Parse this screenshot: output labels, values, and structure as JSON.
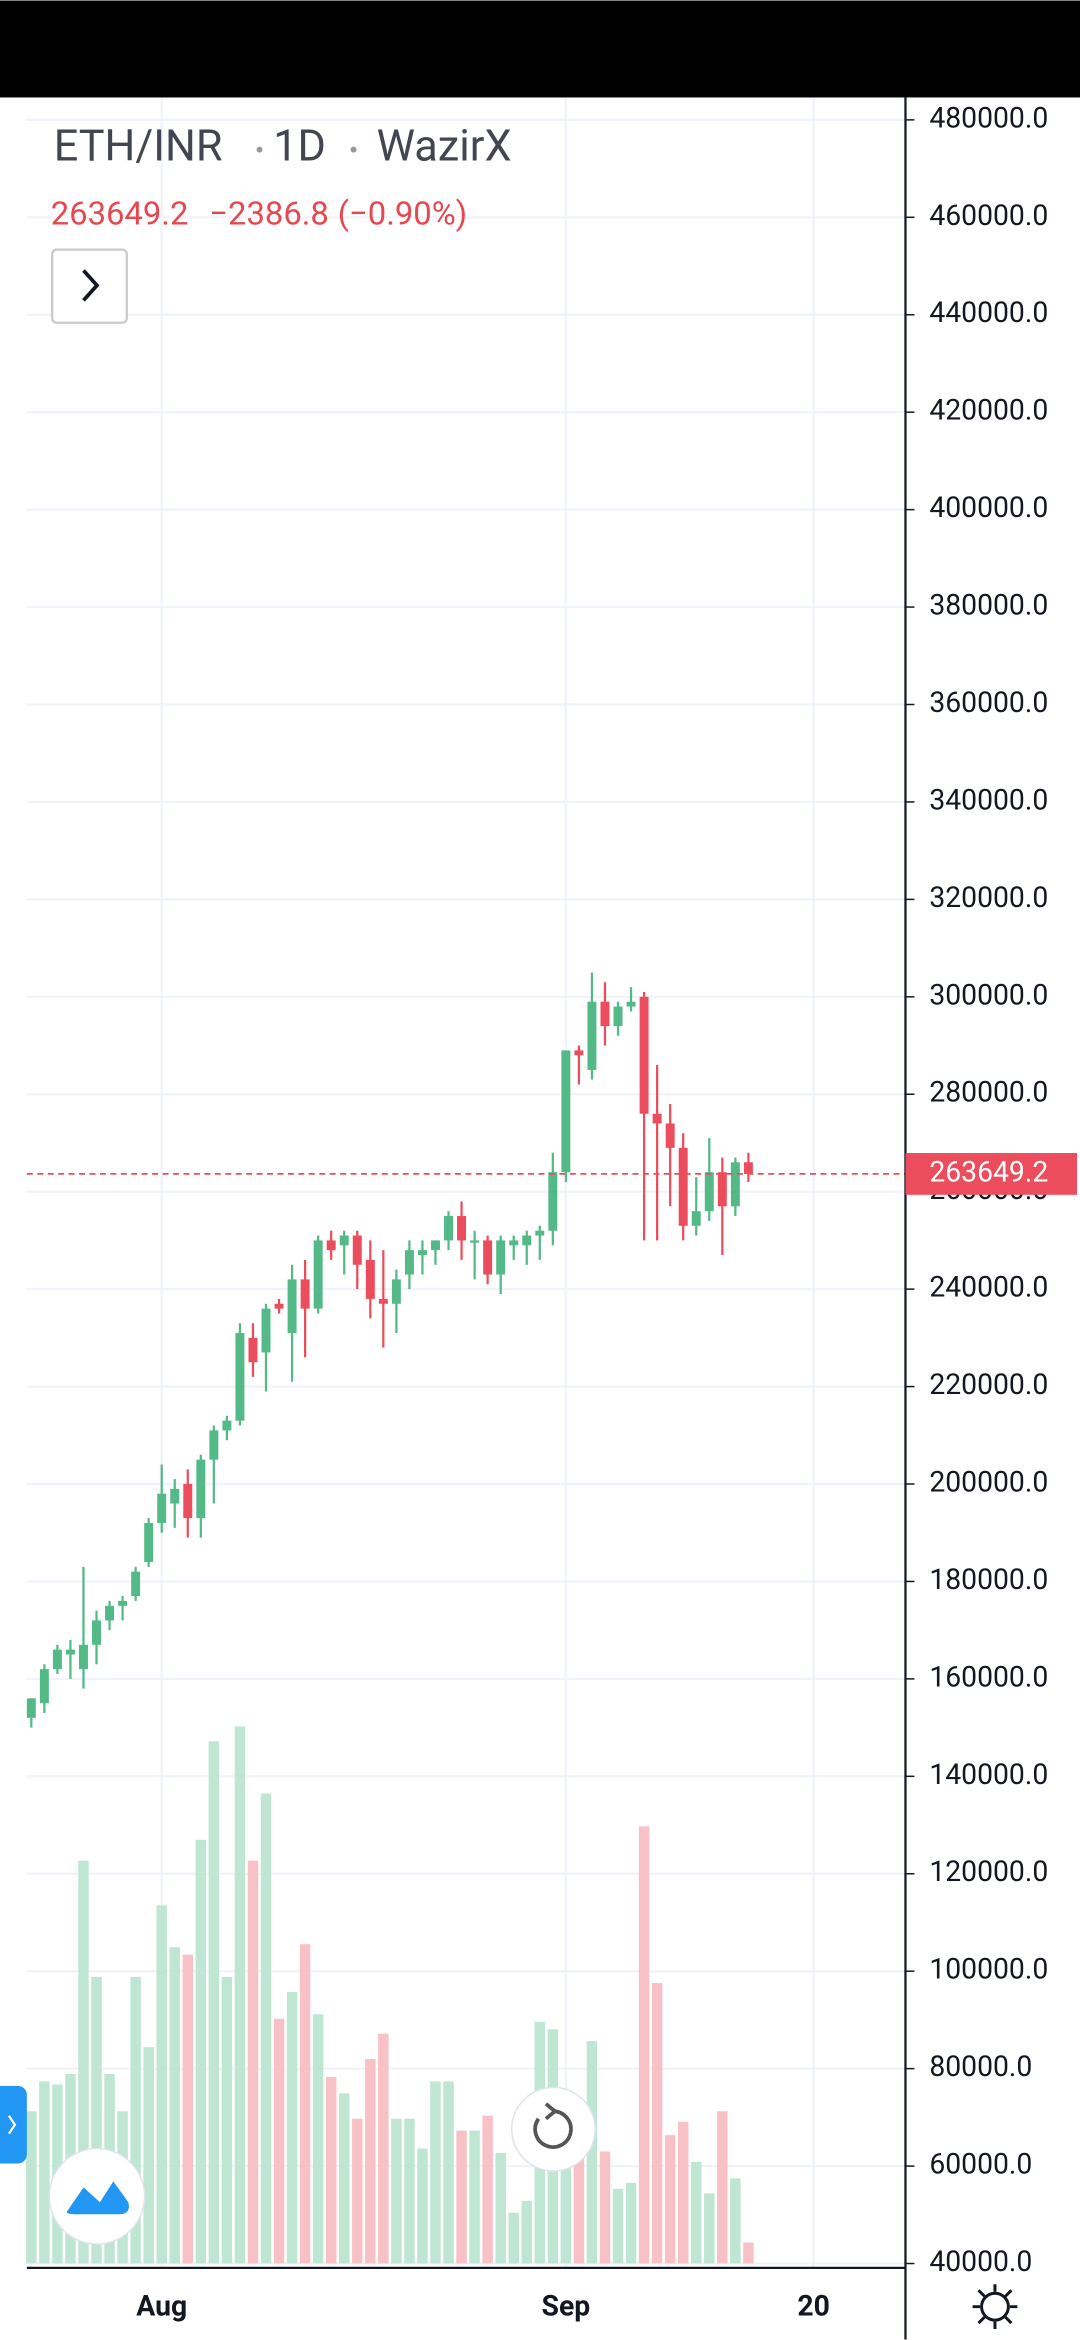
{
  "chart_data": {
    "type": "candlestick",
    "title": "ETH/INR",
    "interval": "1D",
    "exchange": "WazirX",
    "quote": {
      "last": 263649.2,
      "change": {
        "value": -2386.8,
        "label": "−2386.8"
      },
      "change_percent": {
        "value": -0.9,
        "label": "(−0.90%)"
      }
    },
    "categories": [
      null,
      null,
      null,
      null,
      null,
      null,
      null,
      null,
      null,
      null,
      "Aug",
      null,
      null,
      null,
      null,
      null,
      null,
      null,
      null,
      null,
      null,
      null,
      null,
      null,
      null,
      null,
      null,
      null,
      null,
      null,
      null,
      null,
      null,
      null,
      null,
      null,
      null,
      null,
      null,
      null,
      null,
      "Sep",
      null,
      null,
      null,
      null,
      null,
      null,
      null,
      null,
      null,
      null,
      null,
      null,
      null,
      null,
      null,
      null,
      null,
      null,
      "20",
      null,
      null,
      null,
      null,
      null,
      null
    ],
    "open": [
      152000,
      155000,
      162000,
      165000,
      162000,
      167000,
      172000,
      175000,
      177000,
      184000,
      192000,
      196000,
      200000,
      193000,
      205000,
      211000,
      213000,
      230000,
      227000,
      237000,
      231000,
      242000,
      236000,
      250000,
      249000,
      251000,
      246000,
      238000,
      237000,
      243000,
      247000,
      248000,
      250000,
      255000,
      250000,
      250000,
      243000,
      249000,
      249000,
      251000,
      252000,
      264000,
      289000,
      285000,
      299000,
      294000,
      298000,
      300000,
      276000,
      274000,
      269000,
      253000,
      256000,
      264000,
      257000,
      266036,
      null,
      null,
      null,
      null,
      null,
      null,
      null,
      null,
      null,
      null,
      null
    ],
    "high": [
      156000,
      163000,
      167000,
      168000,
      183000,
      174000,
      176000,
      177000,
      183000,
      193000,
      204000,
      201000,
      203000,
      206000,
      212000,
      214000,
      233000,
      233000,
      237000,
      238000,
      245000,
      246000,
      251000,
      252000,
      252000,
      252000,
      250000,
      248000,
      244000,
      250000,
      250000,
      250000,
      256000,
      258000,
      252000,
      251000,
      251000,
      251000,
      252000,
      253000,
      268000,
      289000,
      290000,
      305000,
      303000,
      299000,
      302000,
      301000,
      286000,
      278000,
      272000,
      263000,
      271000,
      267000,
      267000,
      268000,
      null,
      null,
      null,
      null,
      null,
      null,
      null,
      null,
      null,
      null,
      null
    ],
    "low": [
      150000,
      153000,
      161000,
      160000,
      158000,
      163000,
      170000,
      172000,
      176000,
      183000,
      190000,
      191000,
      189000,
      189000,
      196000,
      209000,
      212000,
      222000,
      219000,
      235000,
      221000,
      226000,
      235000,
      246000,
      243000,
      240000,
      234000,
      228000,
      231000,
      240000,
      243000,
      245000,
      248000,
      246000,
      242000,
      241000,
      239000,
      246000,
      245000,
      246000,
      249000,
      262000,
      282000,
      283000,
      290000,
      292000,
      297000,
      250000,
      250000,
      257000,
      250000,
      251000,
      254000,
      247000,
      255000,
      262000,
      null,
      null,
      null,
      null,
      null,
      null,
      null,
      null,
      null,
      null,
      null
    ],
    "close": [
      156000,
      162000,
      166000,
      166000,
      167000,
      172000,
      175000,
      176000,
      182000,
      192000,
      198000,
      199000,
      193000,
      205000,
      211000,
      213000,
      231000,
      225000,
      236000,
      236000,
      242000,
      236000,
      250000,
      248000,
      251000,
      245000,
      238000,
      237000,
      242000,
      248000,
      248000,
      250000,
      255000,
      250000,
      250000,
      243000,
      250000,
      250000,
      251000,
      252000,
      264000,
      289000,
      288000,
      299000,
      294000,
      298000,
      299000,
      276000,
      274000,
      269000,
      253000,
      256000,
      264000,
      257000,
      266036,
      263649.2,
      null,
      null,
      null,
      null,
      null,
      null,
      null,
      null,
      null,
      null,
      null
    ],
    "volume": [
      102,
      122,
      120,
      127,
      270,
      192,
      127,
      102,
      192,
      145,
      240,
      212,
      207,
      284,
      350,
      192,
      360,
      270,
      315,
      164,
      182,
      214,
      167,
      125,
      114,
      97,
      137,
      154,
      97,
      97,
      77,
      122,
      122,
      89,
      89,
      99,
      74,
      34,
      42,
      162,
      157,
      77,
      102,
      149,
      75,
      50,
      54,
      293,
      188,
      86,
      95,
      68,
      47,
      102,
      57,
      14,
      null,
      null,
      null,
      null,
      null,
      null,
      null,
      null,
      null,
      null,
      null
    ],
    "up_color": "#53b987",
    "down_color": "#eb4d5c",
    "up_volume_color": "#bfe6d2",
    "down_volume_color": "#f7c1c6",
    "ylim": [
      39100,
      484600
    ],
    "yticks": [
      {
        "value": 40000,
        "label": "40000.0"
      },
      {
        "value": 60000,
        "label": "60000.0"
      },
      {
        "value": 80000,
        "label": "80000.0"
      },
      {
        "value": 100000,
        "label": "100000.0"
      },
      {
        "value": 120000,
        "label": "120000.0"
      },
      {
        "value": 140000,
        "label": "140000.0"
      },
      {
        "value": 160000,
        "label": "160000.0"
      },
      {
        "value": 180000,
        "label": "180000.0"
      },
      {
        "value": 200000,
        "label": "200000.0"
      },
      {
        "value": 220000,
        "label": "220000.0"
      },
      {
        "value": 240000,
        "label": "240000.0"
      },
      {
        "value": 260000,
        "label": "260000.0"
      },
      {
        "value": 280000,
        "label": "280000.0"
      },
      {
        "value": 300000,
        "label": "300000.0"
      },
      {
        "value": 320000,
        "label": "320000.0"
      },
      {
        "value": 340000,
        "label": "340000.0"
      },
      {
        "value": 360000,
        "label": "360000.0"
      },
      {
        "value": 380000,
        "label": "380000.0"
      },
      {
        "value": 400000,
        "label": "400000.0"
      },
      {
        "value": 420000,
        "label": "420000.0"
      },
      {
        "value": 440000,
        "label": "440000.0"
      },
      {
        "value": 460000,
        "label": "460000.0"
      },
      {
        "value": 480000,
        "label": "480000.0"
      }
    ],
    "grid": true
  }
}
